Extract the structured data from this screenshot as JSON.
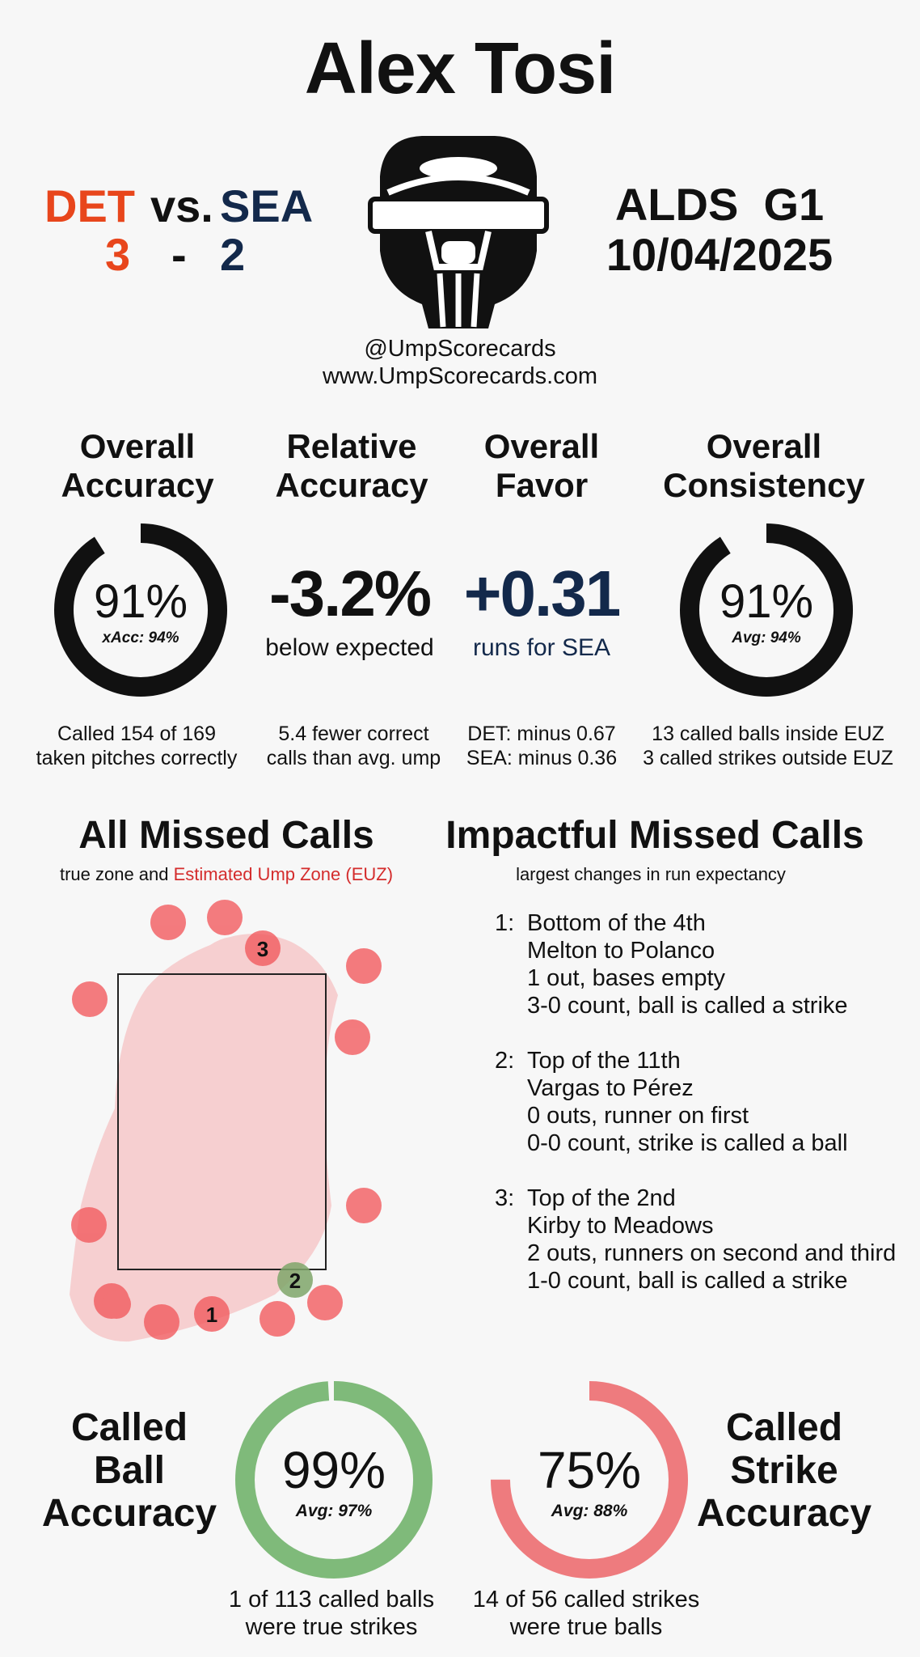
{
  "umpire": "Alex Tosi",
  "home_team": {
    "abbr": "DET",
    "score": "3",
    "color": "#e8461c"
  },
  "away_team": {
    "abbr": "SEA",
    "score": "2",
    "color": "#13294b"
  },
  "vs": "vs.",
  "dash": "-",
  "game": {
    "series": "ALDS",
    "game": "G1",
    "date": "10/04/2025"
  },
  "handles": {
    "twitter": "@UmpScorecards",
    "site": "www.UmpScorecards.com"
  },
  "icon": "umpire-mask-icon",
  "stats": {
    "overall_accuracy": {
      "title_1": "Overall",
      "title_2": "Accuracy",
      "value": "91%",
      "sub": "xAcc: 94%",
      "fraction": 0.91,
      "note_1": "Called 154 of 169",
      "note_2": "taken pitches correctly"
    },
    "relative_accuracy": {
      "title_1": "Relative",
      "title_2": "Accuracy",
      "value": "-3.2%",
      "sub": "below expected",
      "note_1": "5.4 fewer correct",
      "note_2": "calls than avg. ump"
    },
    "overall_favor": {
      "title_1": "Overall",
      "title_2": "Favor",
      "value": "+0.31",
      "sub": "runs for SEA",
      "note_1": "DET: minus 0.67",
      "note_2": "SEA: minus 0.36"
    },
    "overall_consistency": {
      "title_1": "Overall",
      "title_2": "Consistency",
      "value": "91%",
      "sub": "Avg: 94%",
      "fraction": 0.91,
      "note_1": "13 called balls inside EUZ",
      "note_2": "3 called strikes outside EUZ"
    }
  },
  "missed_calls": {
    "title": "All Missed Calls",
    "subtitle_1": "true zone and",
    "subtitle_2": "Estimated Ump Zone (EUZ)",
    "labels": [
      "3",
      "2",
      "1"
    ]
  },
  "impactful": {
    "title": "Impactful Missed Calls",
    "subtitle": "largest changes in run expectancy",
    "calls": [
      {
        "num": "1:",
        "inning": "Bottom of the 4th",
        "matchup": "Melton to Polanco",
        "situation": "1 out, bases empty",
        "count": "3-0 count, ball is called a strike"
      },
      {
        "num": "2:",
        "inning": "Top of the 11th",
        "matchup": "Vargas to Pérez",
        "situation": "0 outs, runner on first",
        "count": "0-0 count, strike is called a ball"
      },
      {
        "num": "3:",
        "inning": "Top of the 2nd",
        "matchup": "Kirby to Meadows",
        "situation": "2 outs, runners on second and third",
        "count": "1-0 count, ball is called a strike"
      }
    ]
  },
  "ball_accuracy": {
    "title_1": "Called",
    "title_2": "Ball",
    "title_3": "Accuracy",
    "value": "99%",
    "sub": "Avg: 97%",
    "fraction": 0.99,
    "note_1": "1 of 113 called balls",
    "note_2": "were true strikes",
    "color": "#7fba7a"
  },
  "strike_accuracy": {
    "title_1": "Called",
    "title_2": "Strike",
    "title_3": "Accuracy",
    "value": "75%",
    "sub": "Avg: 88%",
    "fraction": 0.75,
    "note_1": "14 of 56 called strikes",
    "note_2": "were true balls",
    "color": "#ee7b7e"
  }
}
